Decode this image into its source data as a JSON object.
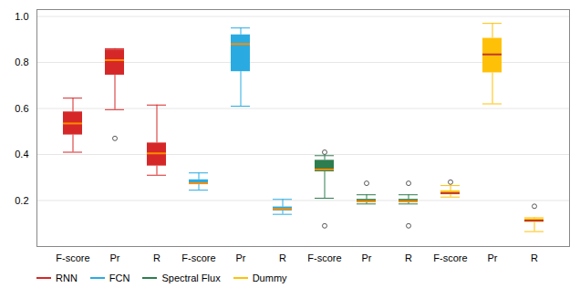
{
  "chart_data": {
    "type": "box",
    "categories": [
      "F-score",
      "Pr",
      "R",
      "F-score",
      "Pr",
      "R",
      "F-score",
      "Pr",
      "R",
      "F-score",
      "Pr",
      "R"
    ],
    "ylim": [
      0.0,
      1.03
    ],
    "yticks": [
      0.2,
      0.4,
      0.6,
      0.8,
      {
        "value": 1.0,
        "label": "1.0"
      }
    ],
    "grid": true,
    "legend": "lower left",
    "series": [
      {
        "name": "RNN",
        "color": "#d62728",
        "median_color": "#ff8c00",
        "values": [
          {
            "whislo": 0.41,
            "q1": 0.485,
            "med": 0.535,
            "q3": 0.585,
            "whishi": 0.645,
            "fliers": []
          },
          {
            "whislo": 0.595,
            "q1": 0.745,
            "med": 0.81,
            "q3": 0.855,
            "whishi": 0.86,
            "fliers": [
              0.47
            ]
          },
          {
            "whislo": 0.31,
            "q1": 0.35,
            "med": 0.405,
            "q3": 0.45,
            "whishi": 0.615,
            "fliers": []
          },
          null,
          null,
          null,
          null,
          null,
          null,
          null,
          null,
          null
        ]
      },
      {
        "name": "FCN",
        "color": "#29abe2",
        "median_color": "#ff8c00",
        "values": [
          null,
          null,
          null,
          {
            "whislo": 0.245,
            "q1": 0.27,
            "med": 0.275,
            "q3": 0.29,
            "whishi": 0.32,
            "fliers": []
          },
          {
            "whislo": 0.61,
            "q1": 0.76,
            "med": 0.88,
            "q3": 0.92,
            "whishi": 0.95,
            "fliers": []
          },
          {
            "whislo": 0.14,
            "q1": 0.155,
            "med": 0.163,
            "q3": 0.172,
            "whishi": 0.205,
            "fliers": []
          },
          null,
          null,
          null,
          null,
          null,
          null
        ]
      },
      {
        "name": "Spectral Flux",
        "color": "#2e7d4f",
        "median_color": "#ff8c00",
        "values": [
          null,
          null,
          null,
          null,
          null,
          null,
          {
            "whislo": 0.21,
            "q1": 0.325,
            "med": 0.335,
            "q3": 0.375,
            "whishi": 0.395,
            "fliers": [
              0.09,
              0.41
            ]
          },
          {
            "whislo": 0.185,
            "q1": 0.192,
            "med": 0.197,
            "q3": 0.205,
            "whishi": 0.225,
            "fliers": [
              0.275
            ]
          },
          {
            "whislo": 0.185,
            "q1": 0.192,
            "med": 0.197,
            "q3": 0.205,
            "whishi": 0.225,
            "fliers": [
              0.09,
              0.275
            ]
          },
          null,
          null,
          null
        ]
      },
      {
        "name": "Dummy",
        "color": "#ffc107",
        "median_color": "#c0392b",
        "values": [
          null,
          null,
          null,
          null,
          null,
          null,
          null,
          null,
          null,
          {
            "whislo": 0.215,
            "q1": 0.225,
            "med": 0.232,
            "q3": 0.242,
            "whishi": 0.265,
            "fliers": [
              0.28
            ]
          },
          {
            "whislo": 0.62,
            "q1": 0.755,
            "med": 0.835,
            "q3": 0.905,
            "whishi": 0.97,
            "fliers": []
          },
          {
            "whislo": 0.065,
            "q1": 0.105,
            "med": 0.113,
            "q3": 0.12,
            "whishi": 0.125,
            "fliers": [
              0.175
            ]
          }
        ]
      }
    ]
  }
}
